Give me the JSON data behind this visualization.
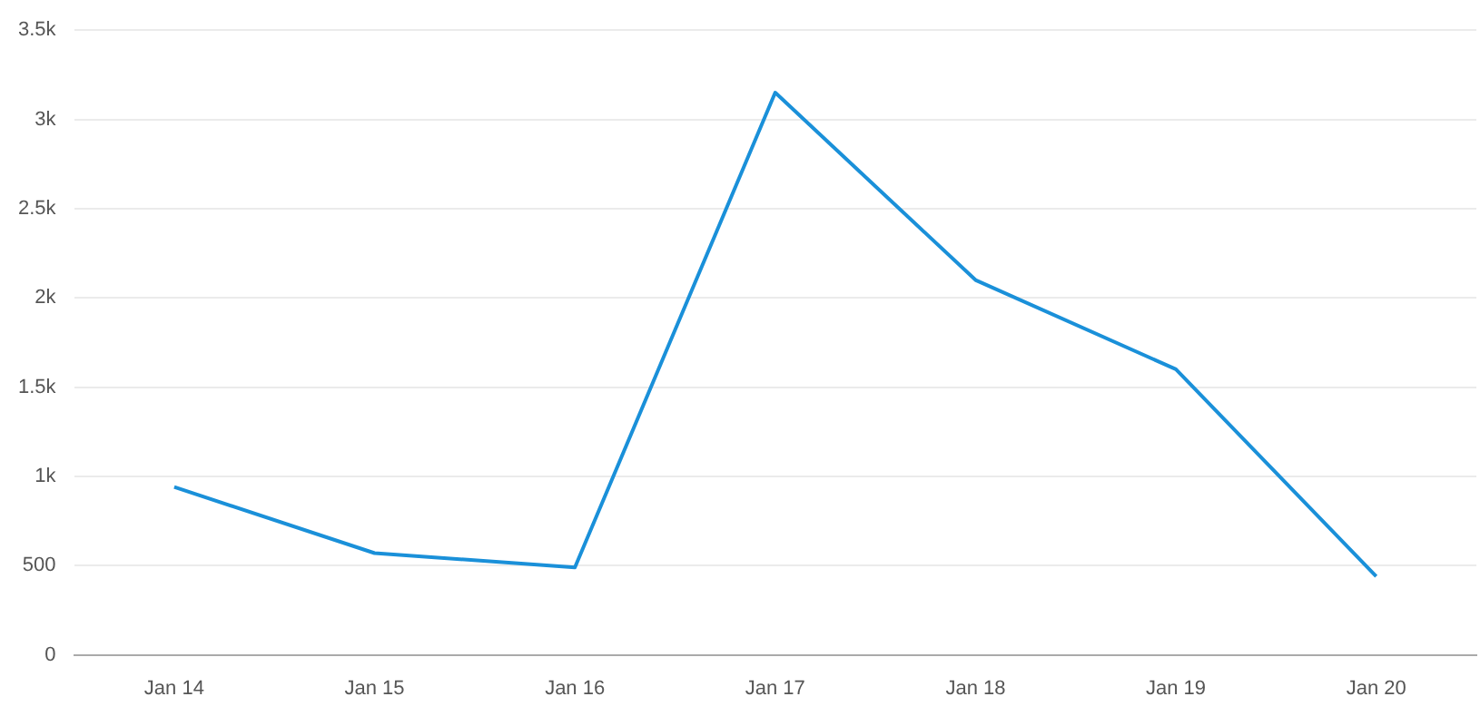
{
  "chart_data": {
    "type": "line",
    "categories": [
      "Jan 14",
      "Jan 15",
      "Jan 16",
      "Jan 17",
      "Jan 18",
      "Jan 19",
      "Jan 20"
    ],
    "series": [
      {
        "color": "#1a90d9",
        "values": [
          940,
          570,
          490,
          3150,
          2100,
          1600,
          440
        ]
      }
    ],
    "ylim": [
      0,
      3500
    ],
    "yticks": [
      0,
      500,
      {
        "value": 1000,
        "label": "1k"
      },
      {
        "value": 1500,
        "label": "1.5k"
      },
      {
        "value": 2000,
        "label": "2k"
      },
      {
        "value": 2500,
        "label": "2.5k"
      },
      {
        "value": 3000,
        "label": "3k"
      },
      {
        "value": 3500,
        "label": "3.5k"
      }
    ],
    "grid": "y",
    "legend": false,
    "marker": "none",
    "line_style": "solid"
  }
}
